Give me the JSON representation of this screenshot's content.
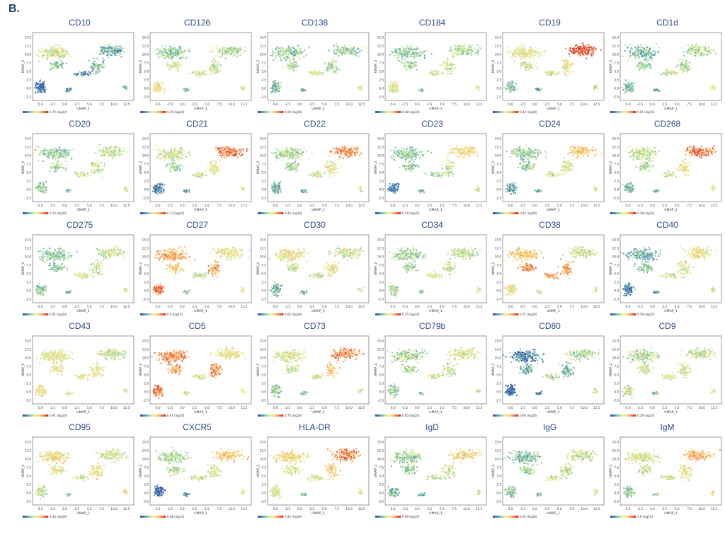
{
  "panel_label": "B.",
  "chart_data": {
    "type": "scatter",
    "xlabel": "UMAP_1",
    "ylabel": "UMAP_2",
    "x_ticks": [
      "-5.0",
      "-2.5",
      "0.0",
      "2.5",
      "5.0",
      "7.5",
      "10.0",
      "12.5"
    ],
    "y_ticks": [
      "-2.5",
      "0.0",
      "2.5",
      "5.0",
      "7.5",
      "10.0",
      "12.5",
      "15.0"
    ],
    "xlim": [
      -6.5,
      14
    ],
    "ylim": [
      -3.5,
      16.5
    ],
    "colormap": [
      "#3b4fa8",
      "#4f9bb8",
      "#9fd4a4",
      "#e8f29d",
      "#fbd680",
      "#f48a52",
      "#d8362a"
    ],
    "panels": [
      {
        "marker": "CD10",
        "max_label": "0.74 (log10)",
        "levels": [
          0.45,
          0.25,
          0.35,
          0.3,
          0.05,
          0.1,
          0.1,
          0.3
        ]
      },
      {
        "marker": "CD126",
        "max_label": "0.49 (log10)",
        "levels": [
          0.35,
          0.4,
          0.45,
          0.45,
          0.55,
          0.3,
          0.5,
          0.5
        ]
      },
      {
        "marker": "CD138",
        "max_label": "0.09 (log10)",
        "levels": [
          0.35,
          0.35,
          0.4,
          0.4,
          0.3,
          0.25,
          0.5,
          0.5
        ]
      },
      {
        "marker": "CD184",
        "max_label": "0.48 (log10)",
        "levels": [
          0.35,
          0.4,
          0.4,
          0.45,
          0.5,
          0.3,
          0.45,
          0.5
        ]
      },
      {
        "marker": "CD19",
        "max_label": "0.43 (log10)",
        "levels": [
          0.5,
          0.95,
          0.45,
          0.55,
          0.3,
          0.25,
          0.5,
          0.45
        ]
      },
      {
        "marker": "CD1d",
        "max_label": "0.01 (log10)",
        "levels": [
          0.3,
          0.4,
          0.35,
          0.4,
          0.3,
          0.25,
          0.45,
          0.55
        ]
      },
      {
        "marker": "CD20",
        "max_label": "0.33 (log10)",
        "levels": [
          0.35,
          0.45,
          0.4,
          0.45,
          0.35,
          0.3,
          0.45,
          0.5
        ]
      },
      {
        "marker": "CD21",
        "max_label": "0.13 (log10)",
        "levels": [
          0.45,
          0.85,
          0.35,
          0.55,
          0.15,
          0.25,
          0.45,
          0.5
        ]
      },
      {
        "marker": "CD22",
        "max_label": "0.43 (log10)",
        "levels": [
          0.4,
          0.8,
          0.35,
          0.55,
          0.25,
          0.25,
          0.45,
          0.45
        ]
      },
      {
        "marker": "CD23",
        "max_label": "0.24 (log10)",
        "levels": [
          0.35,
          0.6,
          0.35,
          0.45,
          0.15,
          0.25,
          0.4,
          0.45
        ]
      },
      {
        "marker": "CD24",
        "max_label": "0.83 (log10)",
        "levels": [
          0.35,
          0.65,
          0.35,
          0.5,
          0.25,
          0.25,
          0.45,
          0.5
        ]
      },
      {
        "marker": "CD268",
        "max_label": "0.38 (log10)",
        "levels": [
          0.45,
          0.85,
          0.4,
          0.55,
          0.3,
          0.3,
          0.45,
          0.5
        ]
      },
      {
        "marker": "CD275",
        "max_label": "0.91 (log10)",
        "levels": [
          0.35,
          0.45,
          0.35,
          0.45,
          0.35,
          0.25,
          0.45,
          0.5
        ]
      },
      {
        "marker": "CD27",
        "max_label": "0.4 (log10)",
        "levels": [
          0.75,
          0.55,
          0.65,
          0.75,
          0.85,
          0.3,
          0.45,
          0.55
        ]
      },
      {
        "marker": "CD30",
        "max_label": "0.62 (log10)",
        "levels": [
          0.55,
          0.45,
          0.45,
          0.55,
          0.25,
          0.25,
          0.45,
          0.5
        ]
      },
      {
        "marker": "CD34",
        "max_label": "0.35 (log10)",
        "levels": [
          0.4,
          0.45,
          0.4,
          0.45,
          0.4,
          0.3,
          0.5,
          0.55
        ]
      },
      {
        "marker": "CD38",
        "max_label": "0.71 (log10)",
        "levels": [
          0.65,
          0.45,
          0.8,
          0.75,
          0.55,
          0.45,
          0.75,
          0.55
        ]
      },
      {
        "marker": "CD40",
        "max_label": "0.36 (log10)",
        "levels": [
          0.25,
          0.55,
          0.35,
          0.5,
          0.15,
          0.2,
          0.45,
          0.5
        ]
      },
      {
        "marker": "CD43",
        "max_label": "0.91 (log10)",
        "levels": [
          0.55,
          0.45,
          0.55,
          0.55,
          0.55,
          0.5,
          0.55,
          0.55
        ]
      },
      {
        "marker": "CD5",
        "max_label": "0.67 (log10)",
        "levels": [
          0.8,
          0.55,
          0.75,
          0.8,
          0.85,
          0.45,
          0.5,
          0.55
        ]
      },
      {
        "marker": "CD73",
        "max_label": "0.74 (log10)",
        "levels": [
          0.5,
          0.8,
          0.45,
          0.65,
          0.35,
          0.3,
          0.5,
          0.5
        ]
      },
      {
        "marker": "CD79b",
        "max_label": "0.65 (log10)",
        "levels": [
          0.4,
          0.5,
          0.4,
          0.45,
          0.4,
          0.3,
          0.5,
          0.5
        ]
      },
      {
        "marker": "CD80",
        "max_label": "0.60 (log10)",
        "levels": [
          0.15,
          0.4,
          0.25,
          0.3,
          0.05,
          0.15,
          0.4,
          0.45
        ]
      },
      {
        "marker": "CD9",
        "max_label": "0.28 (log10)",
        "levels": [
          0.4,
          0.45,
          0.45,
          0.5,
          0.45,
          0.3,
          0.5,
          0.55
        ]
      },
      {
        "marker": "CD95",
        "max_label": "0.44 (log10)",
        "levels": [
          0.6,
          0.5,
          0.55,
          0.6,
          0.45,
          0.35,
          0.5,
          0.6
        ]
      },
      {
        "marker": "CXCR5",
        "max_label": "0.48 (log10)",
        "levels": [
          0.4,
          0.65,
          0.4,
          0.5,
          0.05,
          0.2,
          0.45,
          0.5
        ]
      },
      {
        "marker": "HLA-DR",
        "max_label": "0.83 (log10)",
        "levels": [
          0.6,
          0.8,
          0.5,
          0.65,
          0.45,
          0.35,
          0.5,
          0.55
        ]
      },
      {
        "marker": "IgD",
        "max_label": "0.09 (log10)",
        "levels": [
          0.35,
          0.6,
          0.35,
          0.45,
          0.3,
          0.25,
          0.45,
          0.5
        ]
      },
      {
        "marker": "IgG",
        "max_label": "0.04 (log10)",
        "levels": [
          0.3,
          0.45,
          0.35,
          0.45,
          0.35,
          0.3,
          0.45,
          0.5
        ]
      },
      {
        "marker": "IgM",
        "max_label": "1.6 (log10)",
        "levels": [
          0.5,
          0.7,
          0.45,
          0.55,
          0.35,
          0.3,
          0.5,
          0.55
        ]
      }
    ]
  }
}
